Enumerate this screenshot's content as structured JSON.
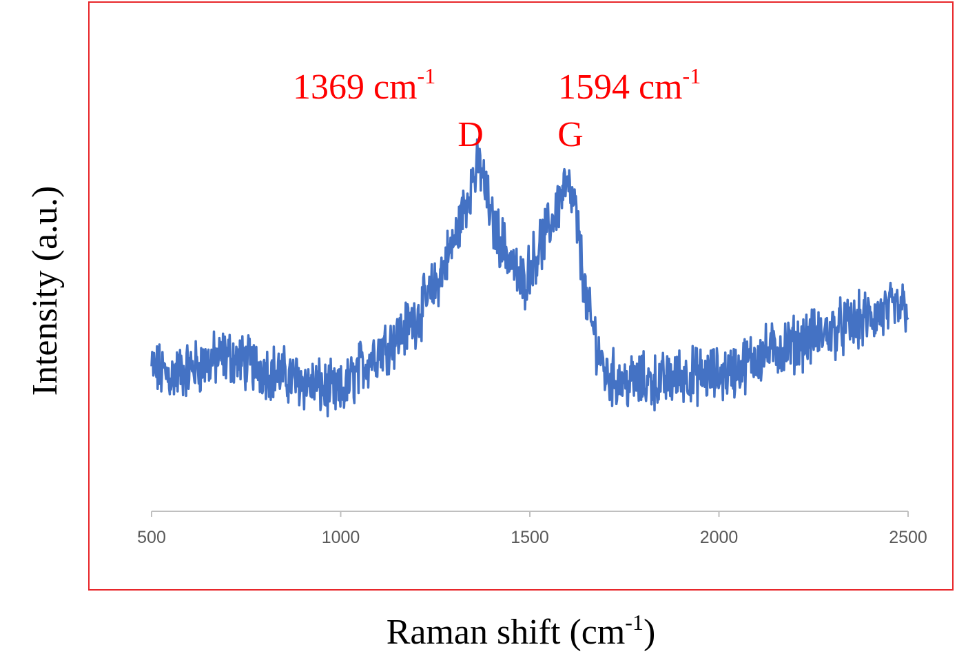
{
  "chart_data": {
    "type": "line",
    "title": "",
    "xlabel": "Raman shift (cm",
    "xlabel_sup": "-1",
    "xlabel_close": ")",
    "ylabel": "Intensity (a.u.)",
    "xlim": [
      500,
      2500
    ],
    "ylim": [
      0,
      1
    ],
    "x_ticks": [
      "500",
      "1000",
      "1500",
      "2000",
      "2500"
    ],
    "y_ticks_shown": false,
    "grid": false,
    "legend": "none",
    "line_color": "#4472c4",
    "annotation_color": "#ff0000",
    "frame_color": "#e8262a",
    "annotations": [
      {
        "band": "D",
        "position": "1369 cm",
        "sup": "-1",
        "x": 1369
      },
      {
        "band": "G",
        "position": "1594 cm",
        "sup": "-1",
        "x": 1594
      }
    ],
    "series": [
      {
        "x": [
          500,
          550,
          600,
          650,
          700,
          750,
          800,
          850,
          900,
          950,
          1000,
          1050,
          1100,
          1150,
          1200,
          1250,
          1300,
          1350,
          1369,
          1400,
          1450,
          1480,
          1500,
          1550,
          1594,
          1620,
          1650,
          1700,
          1750,
          1800,
          1850,
          1900,
          1950,
          2000,
          2050,
          2100,
          2150,
          2200,
          2250,
          2300,
          2350,
          2400,
          2450,
          2500
        ],
        "y": [
          0.47,
          0.46,
          0.47,
          0.48,
          0.49,
          0.48,
          0.47,
          0.46,
          0.45,
          0.44,
          0.43,
          0.47,
          0.5,
          0.52,
          0.55,
          0.6,
          0.67,
          0.77,
          0.79,
          0.7,
          0.64,
          0.6,
          0.63,
          0.69,
          0.76,
          0.72,
          0.57,
          0.46,
          0.45,
          0.45,
          0.45,
          0.46,
          0.46,
          0.46,
          0.47,
          0.49,
          0.5,
          0.51,
          0.52,
          0.53,
          0.54,
          0.55,
          0.56,
          0.57
        ]
      }
    ]
  }
}
